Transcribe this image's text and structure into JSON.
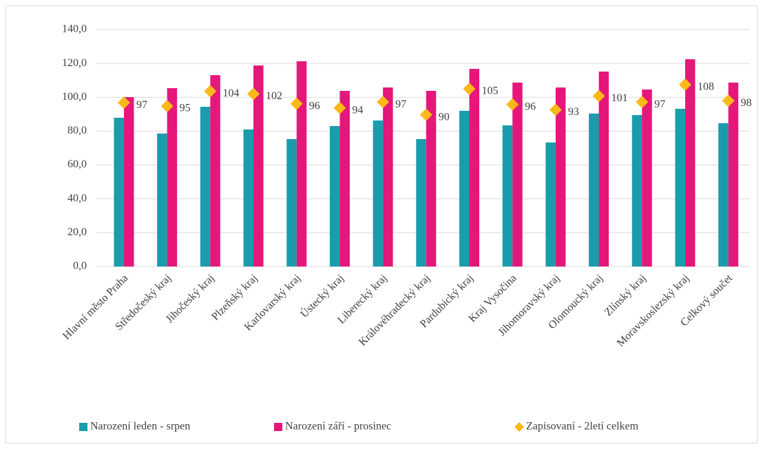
{
  "chart_data": {
    "type": "bar",
    "categories": [
      "Hlavní město Praha",
      "Středočeský kraj",
      "Jihočeský kraj",
      "Plzeňský kraj",
      "Karlovarský kraj",
      "Ústecký kraj",
      "Liberecký kraj",
      "Královéhradecký kraj",
      "Pardubický kraj",
      "Kraj Vysočina",
      "Jihomoravský kraj",
      "Olomoucký kraj",
      "Zlínský kraj",
      "Moravskoslezský kraj",
      "Celkový součet"
    ],
    "series": [
      {
        "name": "Narození leden - srpen",
        "type": "bar",
        "color": "#1a9cad",
        "values": [
          87.9,
          78.6,
          94.4,
          81.0,
          75.3,
          83.0,
          86.3,
          75.3,
          92.0,
          83.4,
          73.3,
          90.4,
          89.5,
          93.2,
          84.7
        ]
      },
      {
        "name": "Narození září - prosinec",
        "type": "bar",
        "color": "#e5177b",
        "values": [
          100.1,
          105.4,
          113.1,
          118.8,
          121.3,
          103.8,
          105.8,
          103.8,
          116.8,
          108.7,
          105.8,
          115.2,
          104.6,
          122.5,
          108.7
        ]
      },
      {
        "name": "Zapisovaní - 2letí celkem",
        "type": "scatter",
        "color": "#fbb819",
        "values": [
          96.8,
          94.8,
          103.6,
          102.0,
          96.2,
          93.7,
          97.2,
          89.7,
          105.0,
          95.8,
          92.6,
          100.8,
          97.2,
          107.5,
          98.0
        ],
        "value_labels": [
          "97",
          "95",
          "104",
          "102",
          "96",
          "94",
          "97",
          "90",
          "105",
          "96",
          "93",
          "101",
          "97",
          "108",
          "98"
        ]
      }
    ],
    "ylim": [
      0,
      140
    ],
    "yticks": [
      {
        "value": 0,
        "label": "0,0"
      },
      {
        "value": 20,
        "label": "20,0"
      },
      {
        "value": 40,
        "label": "40,0"
      },
      {
        "value": 60,
        "label": "60,0"
      },
      {
        "value": 80,
        "label": "80,0"
      },
      {
        "value": 100,
        "label": "100,0"
      },
      {
        "value": 120,
        "label": "120,0"
      },
      {
        "value": 140,
        "label": "140,0"
      }
    ],
    "grid": true,
    "legend": "bottom"
  }
}
